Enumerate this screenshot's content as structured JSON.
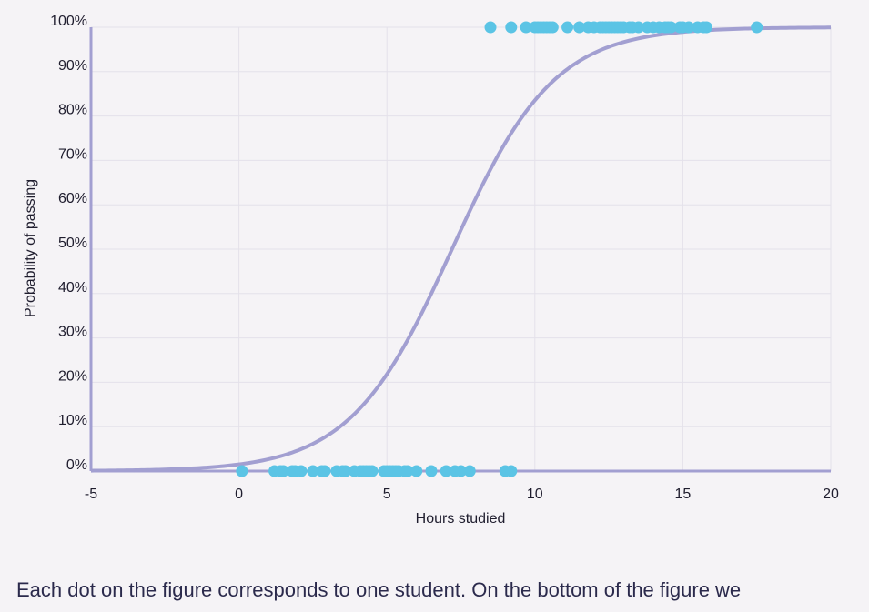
{
  "chart_data": {
    "type": "scatter",
    "xlabel": "Hours studied",
    "ylabel": "Probability of passing",
    "xlim": [
      -5,
      20
    ],
    "ylim": [
      0,
      1
    ],
    "x_ticks": [
      "-5",
      "0",
      "5",
      "10",
      "15",
      "20"
    ],
    "y_ticks": [
      "0%",
      "10%",
      "20%",
      "30%",
      "40%",
      "50%",
      "60%",
      "70%",
      "80%",
      "90%",
      "100%"
    ],
    "grid": true,
    "legend": "none",
    "curve": {
      "kind": "logistic",
      "midpoint_hours": 7.2,
      "slope": 0.58,
      "color": "#a29fd1"
    },
    "points_color": "#5bc4e5",
    "series": [
      {
        "outcome": 0,
        "x": [
          0.1,
          1.2,
          1.4,
          1.5,
          1.8,
          1.9,
          2.1,
          2.5,
          2.8,
          2.9,
          3.3,
          3.5,
          3.6,
          3.9,
          4.1,
          4.2,
          4.3,
          4.4,
          4.5,
          4.9,
          5.0,
          5.1,
          5.2,
          5.3,
          5.4,
          5.6,
          5.7,
          6.0,
          6.5,
          7.0,
          7.3,
          7.5,
          7.8,
          9.0,
          9.2
        ]
      },
      {
        "outcome": 1,
        "x": [
          8.5,
          9.2,
          9.7,
          10.0,
          10.1,
          10.2,
          10.3,
          10.4,
          10.5,
          10.6,
          11.1,
          11.5,
          11.8,
          12.0,
          12.2,
          12.3,
          12.4,
          12.5,
          12.6,
          12.7,
          12.8,
          12.9,
          13.0,
          13.2,
          13.3,
          13.5,
          13.8,
          14.0,
          14.2,
          14.4,
          14.5,
          14.6,
          14.9,
          15.0,
          15.2,
          15.5,
          15.7,
          15.8,
          17.5
        ]
      }
    ]
  },
  "caption": "Each dot on the figure corresponds to one student. On the bottom of the figure we"
}
